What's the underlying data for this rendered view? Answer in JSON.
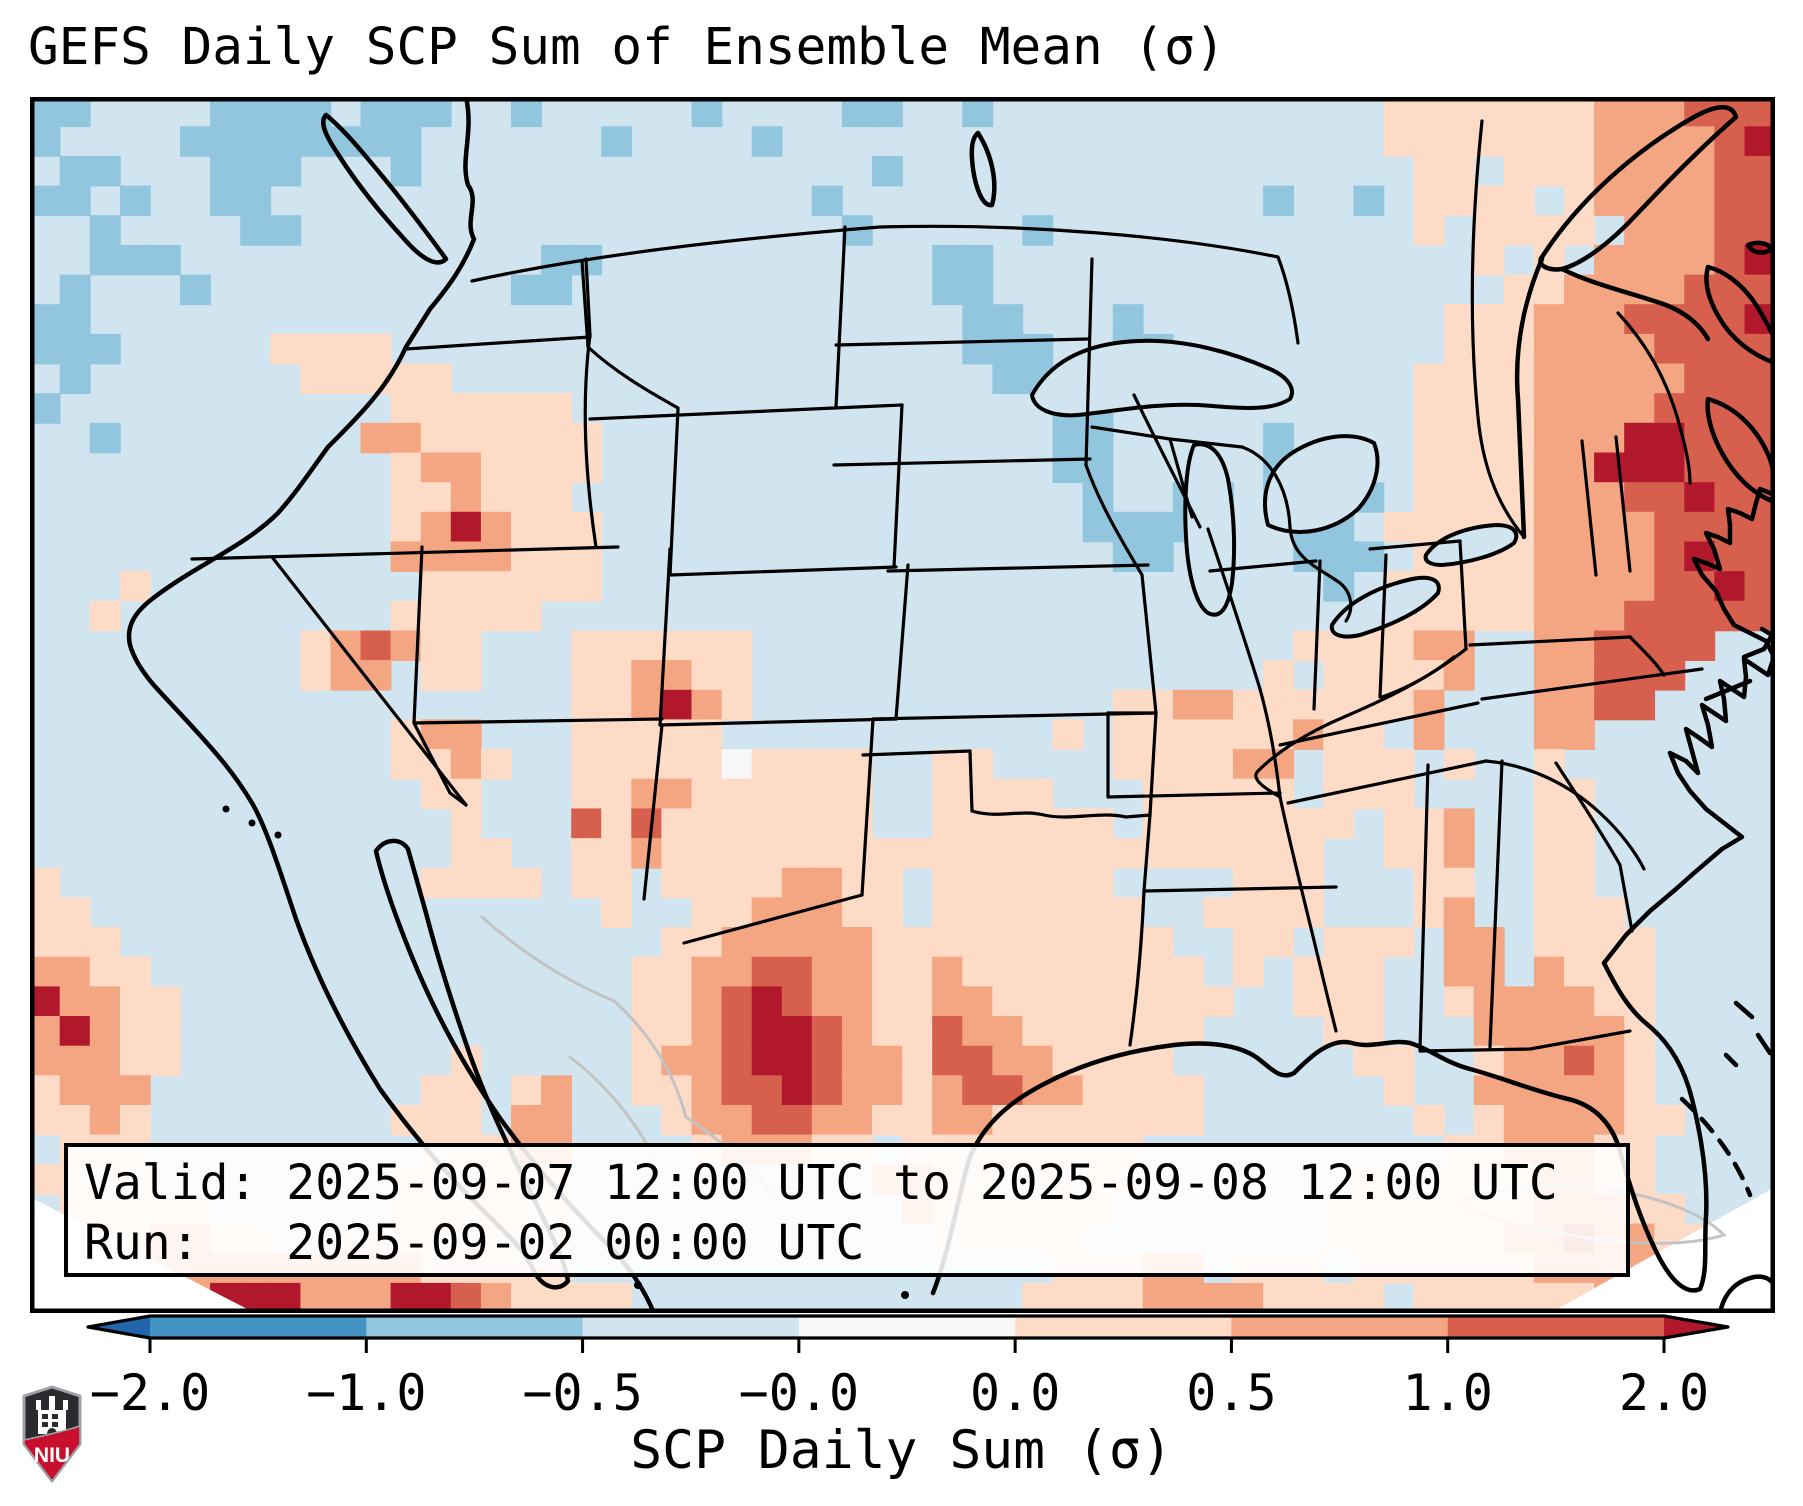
{
  "title": "GEFS Daily SCP Sum of Ensemble Mean (σ)",
  "info_box": {
    "line1": "Valid: 2025-09-07 12:00 UTC to 2025-09-08 12:00 UTC",
    "line2": "Run:   2025-09-02 00:00 UTC"
  },
  "colorbar": {
    "label": "SCP Daily Sum (σ)",
    "tick_labels": [
      "−2.0",
      "−1.0",
      "−0.5",
      "−0.0",
      "0.0",
      "0.5",
      "1.0",
      "2.0"
    ],
    "segment_colors": [
      "#4393c3",
      "#92c5de",
      "#d1e5f0",
      "#f7f7f7",
      "#fddbc7",
      "#f4a582",
      "#d6604d"
    ],
    "under_arrow_color": "#2166ac",
    "over_arrow_color": "#b2182b"
  },
  "logo": {
    "text": "NIU",
    "shield_dark": "#2b2b2f",
    "shield_red": "#c8102e",
    "shield_outline": "#9ea2a4"
  },
  "chart_data": {
    "type": "heatmap",
    "title": "GEFS Daily SCP Sum of Ensemble Mean (σ)",
    "units": "σ (standard deviations)",
    "colorbar_ticks": [
      -2.0,
      -1.0,
      -0.5,
      -0.0,
      0.0,
      0.5,
      1.0,
      2.0
    ],
    "colorbar_label": "SCP Daily Sum (σ)",
    "valid_period": "2025-09-07 12:00 UTC to 2025-09-08 12:00 UTC",
    "model_run": "2025-09-02 00:00 UTC",
    "region": "Contiguous United States and adjacent areas",
    "legend_note": "blue = below-normal SCP, red = above-normal SCP"
  },
  "map": {
    "base_color": "#d1e5f0",
    "palette": {
      ".": "#d1e5f0",
      "b": "#92c5de",
      "B": "#74add1",
      "w": "#f7f7f7",
      "p": "#fddbc7",
      "s": "#f4a582",
      "r": "#d6604d",
      "R": "#b2182b"
    },
    "grid_cols": 58,
    "grid_rows": 41,
    "heatmap_rows": [
      [
        "bb....bbbb",
        ".bbb..b...",
        "..b....bb.",
        ".b........",
        ".....ppppp",
        "ppsssrrr"
      ],
      [
        "b....bbbbb",
        "bbb......b",
        "....b.....",
        "..........",
        ".....ppppp",
        "ppssssrR"
      ],
      [
        ".bb...bbb.",
        "..b.......",
        "........b.",
        "..........",
        "......pp.p",
        "ppssssrr"
      ],
      [
        "bb.b..bb..",
        "..........",
        "......b...",
        "..........",
        ".b..b.pppp",
        ".pssssrr"
      ],
      [
        "..b....bb.",
        "..........",
        ".......b..",
        "...b......",
        "......p.pp",
        "pp.sssrr"
      ],
      [
        "..bbb.....",
        ".......bb.",
        "..........",
        "bb........",
        "........p.",
        "p.ssssrR"
      ],
      [
        ".b...b....",
        "......bb..",
        "..........",
        "bb........",
        ".........p",
        "pssssrrr"
      ],
      [
        "bb........",
        "..........",
        "..........",
        ".bb...b...",
        ".......ppp",
        "sssrrrrR"
      ],
      [
        "bbb.....pp",
        "pp........",
        "..........",
        ".bbb..bb..",
        ".......ppp",
        "ssssrrrr"
      ],
      [
        ".b.......p",
        "pppp......",
        "..........",
        "..bb......",
        "......pppp",
        "sssssrrr"
      ],
      [
        "b.........",
        "..pppppp..",
        "..........",
        "....bb....",
        "......pppp",
        "ssssrrrr"
      ],
      [
        "..b.......",
        ".sspppppp.",
        "..........",
        "....bb....",
        ".b....pppp",
        "sssRRrrr"
      ],
      [
        "..........",
        "..psspppp.",
        "..........",
        "....bb....",
        ".bbb..pppp",
        "ssRRRrrr"
      ],
      [
        "..........",
        "..ppsppp..",
        "..........",
        ".....b..bb",
        ".bbbb.pppp",
        "sssrrRrr"
      ],
      [
        "..........",
        "..psRsppp.",
        "..........",
        ".....bbbbb",
        "..bb.ppppp",
        "ssssrrrr"
      ],
      [
        "..........",
        "..ssssppp.",
        "..........",
        "......bb..",
        "..bbb.pppp",
        "ssssrRrr"
      ],
      [
        "...p......",
        "...pppppp.",
        "..........",
        "..........",
        "...b.ppppp",
        "ssssrrRr"
      ],
      [
        "..p.......",
        "..ppppp...",
        "..........",
        "..........",
        ".....ppppp",
        "sssrrrrr"
      ],
      [
        ".........p",
        "srspp...pp",
        "pppp......",
        "..........",
        "..ppppss..",
        "ssrrrr.."
      ],
      [
        ".........p",
        "ss.pp...pp",
        "sspp......",
        "..........",
        ".p.pppps..",
        "ssrrr..."
      ],
      [
        "..........",
        "........pp",
        "sRsp......",
        "......ppss",
        "pppppps...",
        "ssrr...."
      ],
      [
        "..........",
        "..pss...pp",
        "ppp.......",
        "....p.pppp",
        "ppspp.s...",
        "ss......"
      ],
      [
        "..........",
        "..ppsp..pp",
        "pppwpppp..",
        "pp....pppp",
        "ss.ppp.p..",
        "p......."
      ],
      [
        "..........",
        "...pp...pp",
        "sspppppp..",
        "pppp...ppp",
        "pp.ppp....",
        "pp......"
      ],
      [
        "..........",
        "....p...rp",
        "rppppppp..",
        "pppppp.ppp",
        "pppp.pps..",
        "pp......"
      ],
      [
        "..........",
        "....pp..pp",
        "sppppppppp",
        "pppppppppp",
        "ppp..pps..",
        "pp......"
      ],
      [
        "p.........",
        "...pppp.pp",
        ".ppppsspp.",
        "pppppp....",
        "ppp...pp..",
        "pp......"
      ],
      [
        "pp........",
        ".........p",
        "..ppssspp.",
        "ppppppp..p",
        "ppp...ps..",
        "ppp....."
      ],
      [
        "ppp.......",
        "..........",
        ".ppssssspp",
        "pppppppp..",
        "pp.ppp.ss.",
        "pppp...."
      ],
      [
        "sspp......",
        "..........",
        "ppssrrsspp",
        "spppppppp.",
        "p.ppp..ss.",
        "sppp...."
      ],
      [
        "Rsspp.....",
        "..........",
        "ppsrRrsspp",
        "sspppppppp",
        "..ppp..pss",
        "sspp...."
      ],
      [
        "sRspp.....",
        "..........",
        "ppsrRRrspp",
        "rsspppppp.",
        "...pp...ss",
        "sssp...."
      ],
      [
        "ssspp.....",
        "....p.....",
        "pssrRRrssp",
        "rrsspppp..",
        "....pp..ps",
        "srsp...."
      ],
      [
        "psss......",
        "...pp.ps..",
        "ppsrrRrssp",
        "srrsspppp.",
        ".....p..ss",
        "sssp...."
      ],
      [
        "ppsp......",
        "..ppp.ss..",
        ".pssrrsspp",
        "ssppppppp.",
        "......p.ps",
        "ssspp..."
      ],
      [
        ".ppp......",
        "...pppss..",
        "..pssspp.p",
        "ppppppp...",
        ".......pps",
        "sspp...."
      ],
      [
        "pppp......",
        "..pppppp..",
        "........ss",
        "ppppppp...",
        "....pppppp",
        "sspp...."
      ],
      [
        ".ppppp....",
        "..pppppp..",
        ".........s",
        "pppppp....",
        "...ppppppp",
        "ssspp..."
      ],
      [
        "..ppsspp..",
        "pppppppp..",
        "..........",
        "ppppp.....",
        "...pppppps",
        "srsspp.."
      ],
      [
        ".pppssssss",
        "sssppppp..",
        "..........",
        "....pppss.",
        "ppp.pppppp",
        "sssspp.."
      ],
      [
        "ppssssRRRs",
        "ssRRrspppp",
        "..........",
        "...ppppsss",
        "spppp.pppp",
        "pps....."
      ]
    ]
  }
}
